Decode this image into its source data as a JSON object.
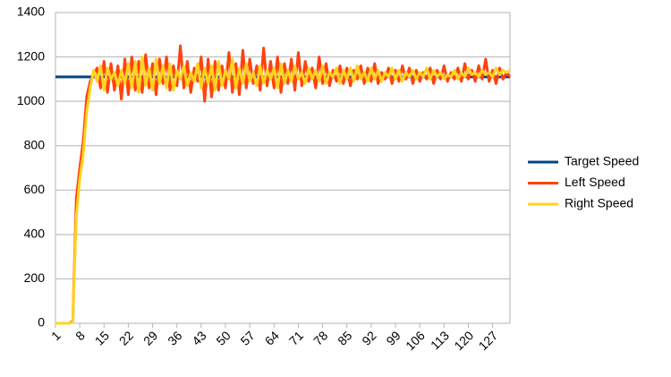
{
  "chart_data": {
    "type": "line",
    "categories": [
      "1",
      null,
      null,
      null,
      null,
      null,
      null,
      "8",
      null,
      null,
      null,
      null,
      null,
      null,
      "15",
      null,
      null,
      null,
      null,
      null,
      null,
      "22",
      null,
      null,
      null,
      null,
      null,
      null,
      "29",
      null,
      null,
      null,
      null,
      null,
      null,
      "36",
      null,
      null,
      null,
      null,
      null,
      null,
      "43",
      null,
      null,
      null,
      null,
      null,
      null,
      "50",
      null,
      null,
      null,
      null,
      null,
      null,
      "57",
      null,
      null,
      null,
      null,
      null,
      null,
      "64",
      null,
      null,
      null,
      null,
      null,
      null,
      "71",
      null,
      null,
      null,
      null,
      null,
      null,
      "78",
      null,
      null,
      null,
      null,
      null,
      null,
      "85",
      null,
      null,
      null,
      null,
      null,
      null,
      "92",
      null,
      null,
      null,
      null,
      null,
      null,
      "99",
      null,
      null,
      null,
      null,
      null,
      null,
      "106",
      null,
      null,
      null,
      null,
      null,
      null,
      "113",
      null,
      null,
      null,
      null,
      null,
      null,
      "120",
      null,
      null,
      null,
      null,
      null,
      null,
      "127",
      null,
      null,
      null,
      null,
      null
    ],
    "ylim": [
      0,
      1400
    ],
    "yticks": [
      0,
      200,
      400,
      600,
      800,
      1000,
      1200,
      1400
    ],
    "grid": true,
    "legend": "right",
    "series": [
      {
        "name": "Target Speed",
        "color": "#004586",
        "values": [
          1110,
          1110,
          1110,
          1110,
          1110,
          1110,
          1110,
          1110,
          1110,
          1110,
          1110,
          1110,
          1110,
          1110,
          1110,
          1110,
          1110,
          1110,
          1110,
          1110,
          1110,
          1110,
          1110,
          1110,
          1110,
          1110,
          1110,
          1110,
          1110,
          1110,
          1110,
          1110,
          1110,
          1110,
          1110,
          1110,
          1110,
          1110,
          1110,
          1110,
          1110,
          1110,
          1110,
          1110,
          1110,
          1110,
          1110,
          1110,
          1110,
          1110,
          1110,
          1110,
          1110,
          1110,
          1110,
          1110,
          1110,
          1110,
          1110,
          1110,
          1110,
          1110,
          1110,
          1110,
          1110,
          1110,
          1110,
          1110,
          1110,
          1110,
          1110,
          1110,
          1110,
          1110,
          1110,
          1110,
          1110,
          1110,
          1110,
          1110,
          1110,
          1110,
          1110,
          1110,
          1110,
          1110,
          1110,
          1110,
          1110,
          1110,
          1110,
          1110,
          1110,
          1110,
          1110,
          1110,
          1110,
          1110,
          1110,
          1110,
          1110,
          1110,
          1110,
          1110,
          1110,
          1110,
          1110,
          1110,
          1110,
          1110,
          1110,
          1110,
          1110,
          1110,
          1110,
          1110,
          1110,
          1110,
          1110,
          1110,
          1110,
          1110,
          1110,
          1110,
          1110,
          1110,
          1110,
          1110,
          1110,
          1110,
          1110,
          1110
        ]
      },
      {
        "name": "Left Speed",
        "color": "#ff420e",
        "values": [
          0,
          0,
          0,
          0,
          0,
          10,
          560,
          700,
          820,
          1020,
          1090,
          1120,
          1150,
          1060,
          1180,
          1040,
          1170,
          1050,
          1160,
          1010,
          1190,
          1030,
          1200,
          1050,
          1180,
          1040,
          1210,
          1060,
          1170,
          1030,
          1190,
          1080,
          1200,
          1050,
          1160,
          1070,
          1250,
          1060,
          1180,
          1040,
          1150,
          1090,
          1200,
          1000,
          1190,
          1020,
          1180,
          1050,
          1160,
          1060,
          1220,
          1040,
          1170,
          1030,
          1230,
          1060,
          1190,
          1080,
          1160,
          1050,
          1240,
          1070,
          1180,
          1060,
          1200,
          1040,
          1170,
          1080,
          1190,
          1050,
          1220,
          1070,
          1180,
          1090,
          1150,
          1060,
          1200,
          1080,
          1170,
          1070,
          1140,
          1090,
          1160,
          1080,
          1150,
          1070,
          1140,
          1100,
          1160,
          1080,
          1150,
          1090,
          1170,
          1080,
          1130,
          1100,
          1150,
          1080,
          1140,
          1090,
          1160,
          1100,
          1150,
          1080,
          1140,
          1090,
          1130,
          1100,
          1150,
          1080,
          1140,
          1100,
          1160,
          1090,
          1130,
          1100,
          1150,
          1090,
          1170,
          1100,
          1140,
          1090,
          1160,
          1100,
          1190,
          1090,
          1140,
          1080,
          1150,
          1100,
          1130,
          1110
        ]
      },
      {
        "name": " Right Speed",
        "color": "#ffd320",
        "values": [
          0,
          0,
          0,
          0,
          0,
          5,
          480,
          650,
          760,
          950,
          1060,
          1140,
          1090,
          1160,
          1050,
          1150,
          1100,
          1130,
          1070,
          1140,
          1080,
          1170,
          1060,
          1180,
          1040,
          1200,
          1070,
          1150,
          1050,
          1190,
          1080,
          1160,
          1060,
          1170,
          1050,
          1140,
          1100,
          1160,
          1070,
          1130,
          1090,
          1170,
          1060,
          1150,
          1080,
          1160,
          1050,
          1180,
          1070,
          1140,
          1100,
          1190,
          1060,
          1150,
          1080,
          1170,
          1090,
          1130,
          1070,
          1160,
          1080,
          1140,
          1100,
          1150,
          1060,
          1170,
          1080,
          1140,
          1090,
          1160,
          1100,
          1130,
          1080,
          1150,
          1100,
          1140,
          1090,
          1160,
          1080,
          1130,
          1110,
          1150,
          1080,
          1140,
          1100,
          1150,
          1090,
          1160,
          1100,
          1130,
          1090,
          1150,
          1100,
          1140,
          1090,
          1130,
          1110,
          1150,
          1100,
          1140,
          1090,
          1130,
          1110,
          1140,
          1100,
          1130,
          1110,
          1150,
          1100,
          1140,
          1110,
          1130,
          1100,
          1120,
          1110,
          1140,
          1100,
          1130,
          1110,
          1150,
          1120,
          1130,
          1110,
          1140,
          1120,
          1130,
          1110,
          1150,
          1120,
          1140,
          1130,
          1140
        ]
      }
    ]
  }
}
